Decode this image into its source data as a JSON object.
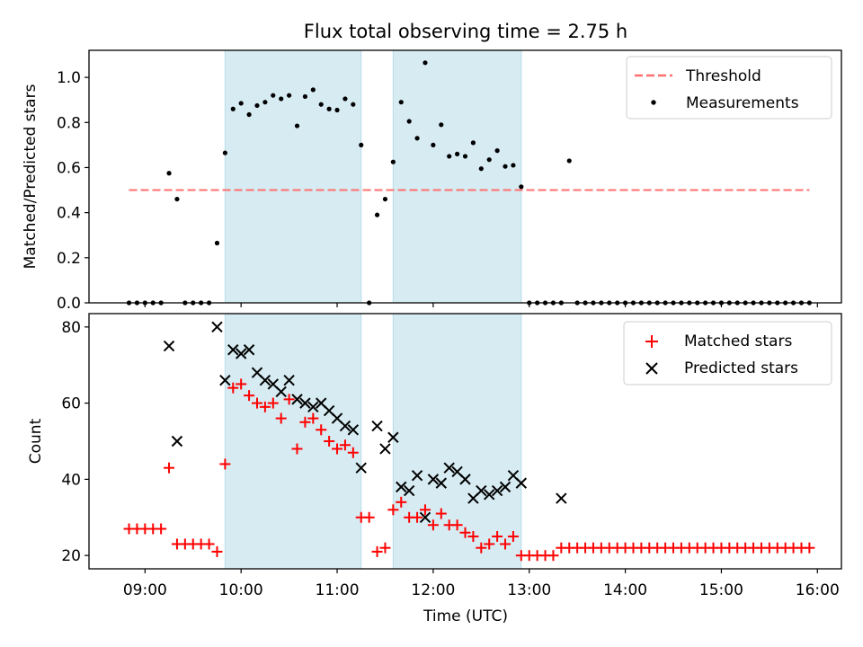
{
  "title": "Flux total observing time = 2.75 h",
  "chart_data": [
    {
      "type": "scatter",
      "panel": "top",
      "ylabel": "Matched/Predicted stars",
      "ylim": [
        0,
        1.12
      ],
      "yticks": [
        "0.0",
        "0.2",
        "0.4",
        "0.6",
        "0.8",
        "1.0"
      ],
      "ytick_values": [
        0,
        0.2,
        0.4,
        0.6,
        0.8,
        1.0
      ],
      "legend": "top-right",
      "threshold": {
        "name": "Threshold",
        "value": 0.5,
        "x_start": "08:50",
        "x_end": "15:55",
        "color": "#ff6f6f"
      },
      "series": [
        {
          "name": "Measurements",
          "color": "#000000",
          "x": [
            "08:50",
            "08:55",
            "09:00",
            "09:05",
            "09:10",
            "09:15",
            "09:20",
            "09:25",
            "09:30",
            "09:35",
            "09:40",
            "09:45",
            "09:50",
            "09:55",
            "10:00",
            "10:05",
            "10:10",
            "10:15",
            "10:20",
            "10:25",
            "10:30",
            "10:35",
            "10:40",
            "10:45",
            "10:50",
            "10:55",
            "11:00",
            "11:05",
            "11:10",
            "11:15",
            "11:20",
            "11:25",
            "11:30",
            "11:35",
            "11:40",
            "11:45",
            "11:50",
            "11:55",
            "12:00",
            "12:05",
            "12:10",
            "12:15",
            "12:20",
            "12:25",
            "12:30",
            "12:35",
            "12:40",
            "12:45",
            "12:50",
            "12:55",
            "13:00",
            "13:05",
            "13:10",
            "13:15",
            "13:20",
            "13:25",
            "13:30",
            "13:35",
            "13:40",
            "13:45",
            "13:50",
            "13:55",
            "14:00",
            "14:05",
            "14:10",
            "14:15",
            "14:20",
            "14:25",
            "14:30",
            "14:35",
            "14:40",
            "14:45",
            "14:50",
            "14:55",
            "15:00",
            "15:05",
            "15:10",
            "15:15",
            "15:20",
            "15:25",
            "15:30",
            "15:35",
            "15:40",
            "15:45",
            "15:50",
            "15:55"
          ],
          "y": [
            0,
            0,
            0,
            0,
            0,
            0.575,
            0.46,
            0,
            0,
            0,
            0,
            0.265,
            0.665,
            0.86,
            0.885,
            0.835,
            0.875,
            0.89,
            0.92,
            0.905,
            0.92,
            0.785,
            0.915,
            0.945,
            0.88,
            0.86,
            0.855,
            0.905,
            0.88,
            0.7,
            0,
            0.39,
            0.46,
            0.625,
            0.89,
            0.805,
            0.73,
            1.065,
            0.7,
            0.79,
            0.65,
            0.66,
            0.65,
            0.71,
            0.595,
            0.635,
            0.675,
            0.605,
            0.61,
            0.515,
            0,
            0,
            0,
            0,
            0,
            0.63,
            0,
            0,
            0,
            0,
            0,
            0,
            0,
            0,
            0,
            0,
            0,
            0,
            0,
            0,
            0,
            0,
            0,
            0,
            0,
            0,
            0,
            0,
            0,
            0,
            0,
            0,
            0,
            0,
            0,
            0
          ]
        }
      ]
    },
    {
      "type": "scatter",
      "panel": "bottom",
      "xlabel": "Time (UTC)",
      "ylabel": "Count",
      "ylim": [
        16.5,
        83.5
      ],
      "yticks": [
        "20",
        "40",
        "60",
        "80"
      ],
      "ytick_values": [
        20,
        40,
        60,
        80
      ],
      "xlim": [
        "08:25",
        "16:15"
      ],
      "xticks": [
        "09:00",
        "10:00",
        "11:00",
        "12:00",
        "13:00",
        "14:00",
        "15:00",
        "16:00"
      ],
      "legend": "top-right",
      "series": [
        {
          "name": "Matched stars",
          "color": "#ff0000",
          "marker": "plus",
          "x": [
            "08:50",
            "08:55",
            "09:00",
            "09:05",
            "09:10",
            "09:15",
            "09:20",
            "09:25",
            "09:30",
            "09:35",
            "09:40",
            "09:45",
            "09:50",
            "09:55",
            "10:00",
            "10:05",
            "10:10",
            "10:15",
            "10:20",
            "10:25",
            "10:30",
            "10:35",
            "10:40",
            "10:45",
            "10:50",
            "10:55",
            "11:00",
            "11:05",
            "11:10",
            "11:15",
            "11:20",
            "11:25",
            "11:30",
            "11:35",
            "11:40",
            "11:45",
            "11:50",
            "11:55",
            "12:00",
            "12:05",
            "12:10",
            "12:15",
            "12:20",
            "12:25",
            "12:30",
            "12:35",
            "12:40",
            "12:45",
            "12:50",
            "12:55",
            "13:00",
            "13:05",
            "13:10",
            "13:15",
            "13:20",
            "13:25",
            "13:30",
            "13:35",
            "13:40",
            "13:45",
            "13:50",
            "13:55",
            "14:00",
            "14:05",
            "14:10",
            "14:15",
            "14:20",
            "14:25",
            "14:30",
            "14:35",
            "14:40",
            "14:45",
            "14:50",
            "14:55",
            "15:00",
            "15:05",
            "15:10",
            "15:15",
            "15:20",
            "15:25",
            "15:30",
            "15:35",
            "15:40",
            "15:45",
            "15:50",
            "15:55"
          ],
          "y": [
            27,
            27,
            27,
            27,
            27,
            43,
            23,
            23,
            23,
            23,
            23,
            21,
            44,
            64,
            65,
            62,
            60,
            59,
            60,
            56,
            61,
            48,
            55,
            56,
            53,
            50,
            48,
            49,
            47,
            30,
            30,
            21,
            22,
            32,
            34,
            30,
            30,
            32,
            28,
            31,
            28,
            28,
            26,
            25,
            22,
            23,
            25,
            23,
            25,
            20,
            20,
            20,
            20,
            20,
            22,
            22,
            22,
            22,
            22,
            22,
            22,
            22,
            22,
            22,
            22,
            22,
            22,
            22,
            22,
            22,
            22,
            22,
            22,
            22,
            22,
            22,
            22,
            22,
            22,
            22,
            22,
            22,
            22,
            22,
            22,
            22
          ]
        },
        {
          "name": "Predicted stars",
          "color": "#000000",
          "marker": "x",
          "x": [
            "09:15",
            "09:20",
            "09:45",
            "09:50",
            "09:55",
            "10:00",
            "10:05",
            "10:10",
            "10:15",
            "10:20",
            "10:25",
            "10:30",
            "10:35",
            "10:40",
            "10:45",
            "10:50",
            "10:55",
            "11:00",
            "11:05",
            "11:10",
            "11:15",
            "11:25",
            "11:30",
            "11:35",
            "11:40",
            "11:45",
            "11:50",
            "11:55",
            "12:00",
            "12:05",
            "12:10",
            "12:15",
            "12:20",
            "12:25",
            "12:30",
            "12:35",
            "12:40",
            "12:45",
            "12:50",
            "12:55",
            "13:20"
          ],
          "y": [
            75,
            50,
            80,
            66,
            74,
            73,
            74,
            68,
            66,
            65,
            63,
            66,
            61,
            60,
            59,
            60,
            58,
            56,
            54,
            53,
            43,
            54,
            48,
            51,
            38,
            37,
            41,
            30,
            40,
            39,
            43,
            42,
            40,
            35,
            37,
            36,
            37,
            38,
            41,
            39,
            35
          ]
        }
      ]
    }
  ],
  "shaded_windows": [
    {
      "start": "09:50",
      "end": "11:15",
      "color": "#add8e6"
    },
    {
      "start": "11:35",
      "end": "12:55",
      "color": "#add8e6"
    }
  ]
}
